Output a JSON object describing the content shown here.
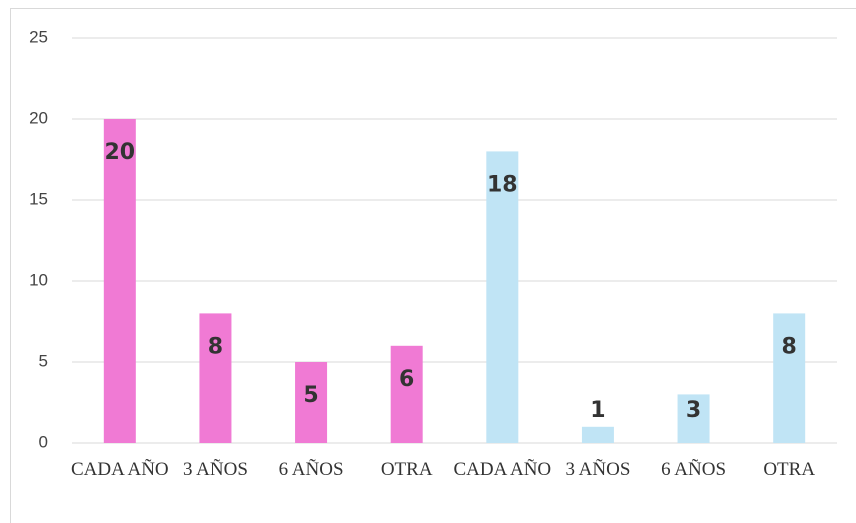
{
  "chart_data": {
    "type": "bar",
    "categories": [
      "CADA AÑO",
      "3 AÑOS",
      "6 AÑOS",
      "OTRA",
      "CADA AÑO",
      "3 AÑOS",
      "6 AÑOS",
      "OTRA"
    ],
    "values": [
      20,
      8,
      5,
      6,
      18,
      1,
      3,
      8
    ],
    "colors": [
      "#f07ad4",
      "#f07ad4",
      "#f07ad4",
      "#f07ad4",
      "#c0e4f5",
      "#c0e4f5",
      "#c0e4f5",
      "#c0e4f5"
    ],
    "ylim": [
      0,
      25
    ],
    "yticks": [
      0,
      5,
      10,
      15,
      20,
      25
    ],
    "grid": true
  }
}
